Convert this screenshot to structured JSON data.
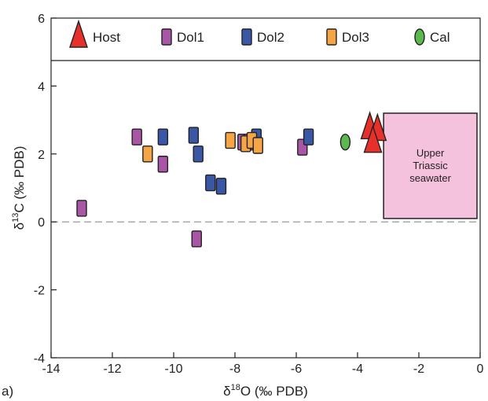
{
  "panel_label": "a)",
  "chart_data": {
    "type": "scatter",
    "xlabel": {
      "prefix": "δ",
      "sup": "18",
      "main": "O (‰ PDB)"
    },
    "ylabel": {
      "prefix": "δ",
      "sup": "13",
      "main": "C (‰ PDB)"
    },
    "xlim": [
      -14,
      0
    ],
    "ylim": [
      -4,
      6
    ],
    "x_ticks": [
      -14,
      -12,
      -10,
      -8,
      -6,
      -4,
      -2,
      0
    ],
    "y_ticks": [
      -4,
      -2,
      0,
      2,
      4,
      6
    ],
    "y_tick_labels": [
      "-4",
      "-2",
      "0",
      "2",
      "4",
      "6"
    ],
    "reference_line": {
      "y": 0,
      "style": "dashed",
      "color": "#aaaaaa"
    },
    "legend_placement": "top",
    "series": [
      {
        "name": "Host",
        "marker": "triangle",
        "color": "#e8302a",
        "points": [
          [
            -3.6,
            2.75
          ],
          [
            -3.35,
            2.7
          ],
          [
            -3.5,
            2.35
          ]
        ]
      },
      {
        "name": "Dol1",
        "marker": "rect",
        "color": "#a956a6",
        "points": [
          [
            -13.0,
            0.4
          ],
          [
            -11.2,
            2.5
          ],
          [
            -10.35,
            1.7
          ],
          [
            -9.25,
            -0.5
          ],
          [
            -7.75,
            2.35
          ],
          [
            -7.55,
            2.35
          ],
          [
            -5.8,
            2.2
          ]
        ]
      },
      {
        "name": "Dol2",
        "marker": "rect",
        "color": "#3a57a5",
        "points": [
          [
            -10.35,
            2.5
          ],
          [
            -9.35,
            2.55
          ],
          [
            -9.2,
            2.0
          ],
          [
            -8.8,
            1.15
          ],
          [
            -8.45,
            1.05
          ],
          [
            -7.3,
            2.5
          ],
          [
            -5.6,
            2.5
          ]
        ]
      },
      {
        "name": "Dol3",
        "marker": "rect",
        "color": "#f5a446",
        "points": [
          [
            -10.85,
            2.0
          ],
          [
            -8.15,
            2.4
          ],
          [
            -7.65,
            2.3
          ],
          [
            -7.45,
            2.4
          ],
          [
            -7.25,
            2.25
          ]
        ]
      },
      {
        "name": "Cal",
        "marker": "ellipse",
        "color": "#5bb94f",
        "points": [
          [
            -4.4,
            2.35
          ]
        ]
      }
    ],
    "region": {
      "label_lines": [
        "Upper",
        "Triassic",
        "seawater"
      ],
      "x": [
        -3.15,
        0.05
      ],
      "y": [
        0.1,
        3.2
      ],
      "color": "#f5c2dd"
    }
  }
}
